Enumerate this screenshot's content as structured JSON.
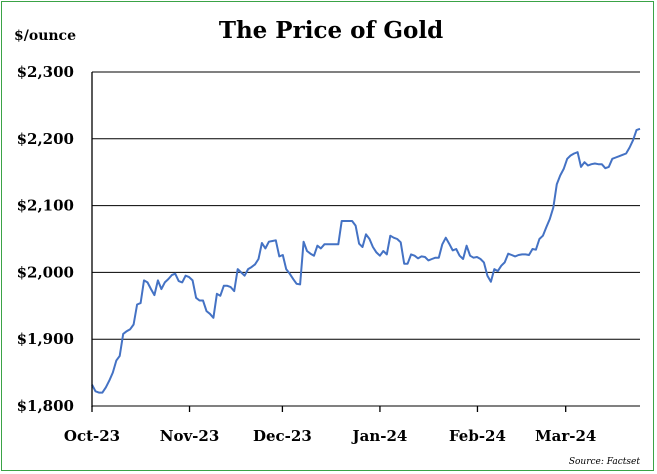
{
  "chart_data": {
    "type": "line",
    "title": "The Price of Gold",
    "ylabel": "$/ounce",
    "xlabel": "",
    "source": "Source: Factset",
    "ylim": [
      1800,
      2300
    ],
    "yticks": [
      1800,
      1900,
      2000,
      2100,
      2200,
      2300
    ],
    "ytick_labels": [
      "$1,800",
      "$1,900",
      "$2,000",
      "$2,100",
      "$2,200",
      "$2,300"
    ],
    "xlim": [
      0,
      118
    ],
    "xticks": [
      {
        "label": "Oct-23",
        "x": 0
      },
      {
        "label": "Nov-23",
        "x": 21
      },
      {
        "label": "Dec-23",
        "x": 41
      },
      {
        "label": "Jan-24",
        "x": 62
      },
      {
        "label": "Feb-24",
        "x": 83
      },
      {
        "label": "Mar-24",
        "x": 102
      }
    ],
    "grid": true,
    "legend": "none",
    "line_color": "#4472c4",
    "series": [
      {
        "name": "Gold price",
        "values": [
          1832,
          1822,
          1820,
          1820,
          1828,
          1838,
          1850,
          1868,
          1875,
          1908,
          1912,
          1915,
          1922,
          1952,
          1954,
          1988,
          1985,
          1975,
          1966,
          1988,
          1975,
          1985,
          1990,
          1996,
          1998,
          1987,
          1985,
          1995,
          1993,
          1988,
          1962,
          1958,
          1958,
          1942,
          1938,
          1932,
          1968,
          1965,
          1980,
          1980,
          1978,
          1972,
          2005,
          2000,
          1995,
          2005,
          2008,
          2012,
          2020,
          2044,
          2036,
          2046,
          2047,
          2048,
          2024,
          2026,
          2005,
          1998,
          1990,
          1983,
          1982,
          2046,
          2032,
          2028,
          2025,
          2040,
          2036,
          2042,
          2042,
          2042,
          2042,
          2042,
          2077,
          2077,
          2077,
          2077,
          2070,
          2043,
          2038,
          2057,
          2050,
          2038,
          2030,
          2025,
          2032,
          2027,
          2055,
          2052,
          2050,
          2045,
          2013,
          2013,
          2027,
          2025,
          2021,
          2024,
          2023,
          2018,
          2020,
          2022,
          2022,
          2042,
          2052,
          2043,
          2033,
          2035,
          2025,
          2020,
          2040,
          2025,
          2022,
          2023,
          2020,
          2015,
          1995,
          1986,
          2005,
          2002,
          2010,
          2015,
          2028,
          2026,
          2024,
          2026,
          2027,
          2027,
          2026,
          2035,
          2034,
          2050,
          2055,
          2068,
          2080,
          2097,
          2132,
          2145,
          2155,
          2170,
          2175,
          2178,
          2180,
          2158,
          2165,
          2160,
          2162,
          2163,
          2162,
          2162,
          2156,
          2158,
          2170,
          2172,
          2174,
          2176,
          2178,
          2187,
          2198,
          2213,
          2215
        ]
      }
    ]
  }
}
